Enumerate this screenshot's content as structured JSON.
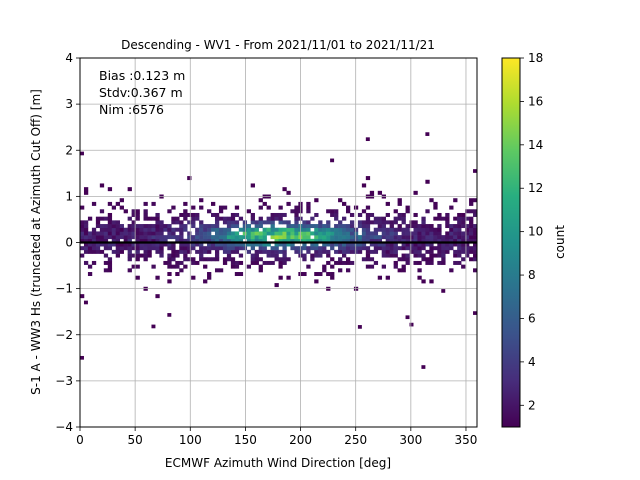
{
  "chart_data": {
    "type": "heatmap",
    "title": "Descending - WV1 - From 2021/11/01 to 2021/11/21",
    "xlabel": "ECMWF Azimuth Wind Direction [deg]",
    "ylabel": "S-1 A - WW3 Hs (truncated at Azimuth Cut Off) [m]",
    "xlim": [
      0,
      360
    ],
    "ylim": [
      -4,
      4
    ],
    "x_ticks": [
      "0",
      "50",
      "100",
      "150",
      "200",
      "250",
      "300",
      "350"
    ],
    "y_ticks": [
      "−4",
      "−3",
      "−2",
      "−1",
      "0",
      "1",
      "2",
      "3",
      "4"
    ],
    "grid": true,
    "annotations": [
      "Bias :0.123 m",
      "Stdv:0.367 m",
      "Nim :6576"
    ],
    "reference_line_y": 0,
    "colorbar": {
      "label": "count",
      "min": 1,
      "max": 18,
      "ticks": [
        "2",
        "4",
        "6",
        "8",
        "10",
        "12",
        "14",
        "16",
        "18"
      ],
      "colormap": "viridis"
    },
    "bin_width_x": 3.6,
    "bin_width_y": 0.08,
    "density_peak": {
      "x": 185,
      "y": 0.15,
      "count": 18
    },
    "outliers": [
      {
        "x": 1,
        "y": 1.93
      },
      {
        "x": 1,
        "y": -2.5
      },
      {
        "x": 262,
        "y": 2.24
      },
      {
        "x": 316,
        "y": 2.35
      },
      {
        "x": 230,
        "y": 1.78
      },
      {
        "x": 313,
        "y": -2.7
      },
      {
        "x": 67,
        "y": -1.82
      },
      {
        "x": 82,
        "y": -1.57
      },
      {
        "x": 298,
        "y": -1.62
      },
      {
        "x": 300,
        "y": -1.78
      },
      {
        "x": 358,
        "y": -1.53
      },
      {
        "x": 255,
        "y": -1.83
      },
      {
        "x": 330,
        "y": -1.05
      },
      {
        "x": 5,
        "y": -1.3
      },
      {
        "x": 360,
        "y": 1.55
      }
    ]
  }
}
